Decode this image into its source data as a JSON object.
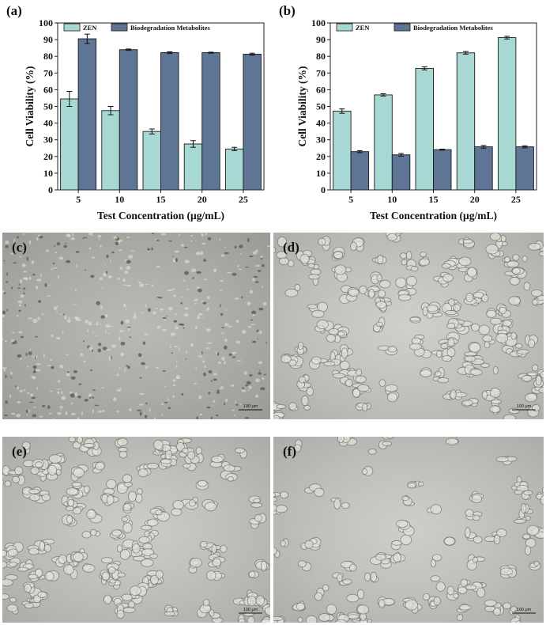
{
  "chart_data": [
    {
      "panel": "(a)",
      "type": "bar",
      "categories": [
        "5",
        "10",
        "15",
        "20",
        "25"
      ],
      "series": [
        {
          "name": "ZEN",
          "values": [
            54.5,
            47.5,
            35.0,
            27.5,
            24.5
          ],
          "errors": [
            4.5,
            2.5,
            1.5,
            2.0,
            1.0
          ],
          "color": "#a7d8d4"
        },
        {
          "name": "Biodegradation Metabolites",
          "values": [
            90.5,
            84.0,
            82.2,
            82.2,
            81.3
          ],
          "errors": [
            2.8,
            0.4,
            0.5,
            0.3,
            0.6
          ],
          "color": "#5e7596"
        }
      ],
      "xlabel": "Test Concentration (μg/mL)",
      "ylabel": "Cell Viability (%)",
      "ylim": [
        0,
        100
      ],
      "yticks": [
        0,
        10,
        20,
        30,
        40,
        50,
        60,
        70,
        80,
        90,
        100
      ],
      "legend": "top"
    },
    {
      "panel": "(b)",
      "type": "bar",
      "categories": [
        "5",
        "10",
        "15",
        "20",
        "25"
      ],
      "series": [
        {
          "name": "ZEN",
          "values": [
            47.2,
            56.9,
            72.8,
            82.1,
            91.2
          ],
          "errors": [
            1.3,
            0.7,
            0.9,
            0.8,
            0.8
          ],
          "color": "#a7d8d4"
        },
        {
          "name": "Biodegradation Metabolites",
          "values": [
            22.9,
            21.0,
            24.1,
            25.8,
            25.8
          ],
          "errors": [
            0.6,
            0.8,
            0.3,
            0.8,
            0.6
          ],
          "color": "#5e7596"
        }
      ],
      "xlabel": "Test Concentration (μg/mL)",
      "ylabel": "Cell Viability (%)",
      "ylim": [
        0,
        100
      ],
      "yticks": [
        0,
        10,
        20,
        30,
        40,
        50,
        60,
        70,
        80,
        90,
        100
      ],
      "legend": "top"
    }
  ],
  "micrographs": [
    {
      "panel": "(c)",
      "scale_bar": "100 μm",
      "tone": "#a9aaa6",
      "density": "dense debris"
    },
    {
      "panel": "(d)",
      "scale_bar": "100 μm",
      "tone": "#c4c5c0",
      "density": "clustered cells"
    },
    {
      "panel": "(e)",
      "scale_bar": "100 μm",
      "tone": "#c0c1bc",
      "density": "clustered cells"
    },
    {
      "panel": "(f)",
      "scale_bar": "100 μm",
      "tone": "#c2c3be",
      "density": "sparse cells"
    }
  ]
}
